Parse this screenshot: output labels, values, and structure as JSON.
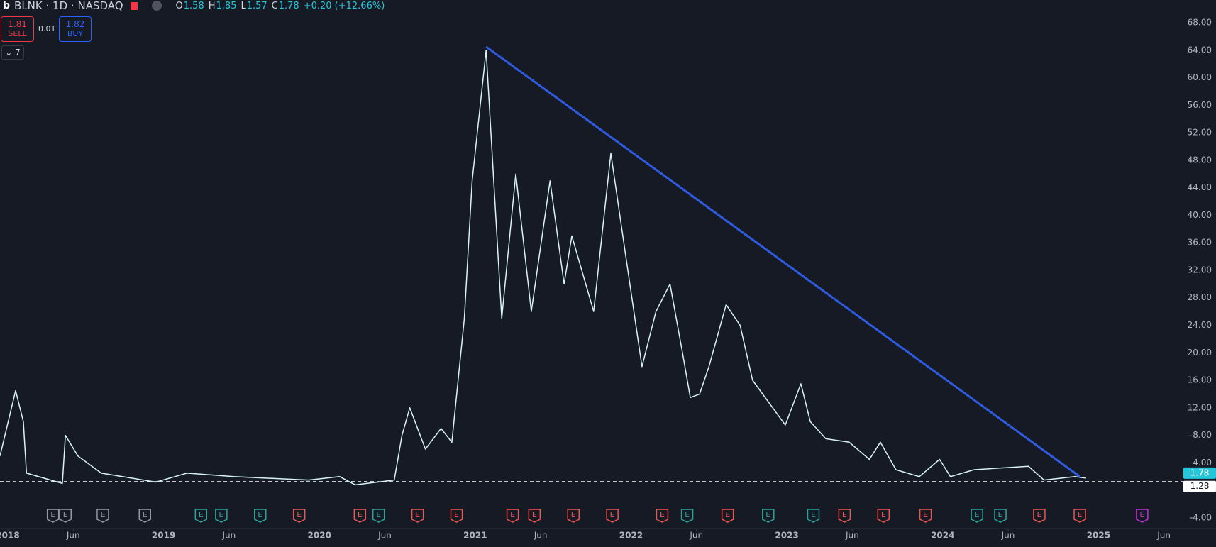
{
  "toolbar": {
    "symbol": "BLNK · 1D · NASDAQ",
    "ohlc": [
      {
        "label": "O",
        "value": "1.58"
      },
      {
        "label": "H",
        "value": "1.85"
      },
      {
        "label": "L",
        "value": "1.57"
      },
      {
        "label": "C",
        "value": "1.78"
      }
    ],
    "change": "+0.20 (+12.66%)",
    "sell": {
      "price": "1.81",
      "label": "SELL"
    },
    "spread": "0.01",
    "buy": {
      "price": "1.82",
      "label": "BUY"
    },
    "indicators": "7"
  },
  "chart_data": {
    "type": "line",
    "series": [
      {
        "name": "BLNK",
        "color": "#d8f3f7",
        "x": [
          2017.95,
          2018.05,
          2018.1,
          2018.12,
          2018.35,
          2018.37,
          2018.45,
          2018.6,
          2018.95,
          2019.15,
          2019.45,
          2019.93,
          2020.13,
          2020.23,
          2020.48,
          2020.53,
          2020.58,
          2020.68,
          2020.78,
          2020.85,
          2020.93,
          2020.98,
          2021.07,
          2021.17,
          2021.26,
          2021.36,
          2021.48,
          2021.57,
          2021.62,
          2021.76,
          2021.87,
          2021.96,
          2022.07,
          2022.16,
          2022.25,
          2022.33,
          2022.38,
          2022.44,
          2022.5,
          2022.61,
          2022.7,
          2022.78,
          2022.99,
          2023.09,
          2023.15,
          2023.25,
          2023.4,
          2023.53,
          2023.6,
          2023.7,
          2023.85,
          2023.98,
          2024.05,
          2024.2,
          2024.55,
          2024.65,
          2024.85,
          2024.92
        ],
        "values": [
          5,
          14.5,
          10,
          2.5,
          1,
          8,
          5,
          2.5,
          1.2,
          2.5,
          2,
          1.5,
          2,
          0.8,
          1.5,
          8,
          12,
          6,
          9,
          7,
          25,
          45,
          64,
          25,
          46,
          26,
          45,
          30,
          37,
          26,
          49,
          35,
          18,
          26,
          30,
          20,
          13.5,
          14,
          18,
          27,
          24,
          16,
          9.5,
          15.5,
          10,
          7.5,
          7,
          4.5,
          7,
          3,
          2,
          4.5,
          2,
          3,
          3.5,
          1.5,
          2,
          1.78
        ]
      }
    ],
    "trendlines": [
      {
        "x": [
          2021.07,
          2024.88
        ],
        "values": [
          64.5,
          2
        ],
        "color": "#2f5be0"
      }
    ],
    "price_lines": [
      {
        "value": 1.78,
        "color": "#26c6da"
      },
      {
        "value": 1.28,
        "color": "#ffffff"
      }
    ],
    "earnings": [
      {
        "color": "#9598a1",
        "label": "E",
        "x": [
          2018.29,
          2018.37,
          2018.61,
          2018.88
        ]
      },
      {
        "color": "#26a69a",
        "label": "E",
        "x": [
          2019.24,
          2019.37,
          2019.62,
          2020.38,
          2022.36,
          2022.88,
          2023.17,
          2024.22,
          2024.37
        ]
      },
      {
        "color": "#ef5350",
        "label": "E",
        "x": [
          2019.87,
          2020.26,
          2020.63,
          2020.88,
          2021.24,
          2021.38,
          2021.63,
          2021.88,
          2022.2,
          2022.62,
          2023.37,
          2023.62,
          2023.89,
          2024.62,
          2024.88
        ]
      },
      {
        "color": "#c42ed8",
        "label": "E",
        "x": [
          2025.28
        ]
      }
    ],
    "xlim": [
      2017.95,
      2025.54
    ],
    "ylim": [
      -5.35,
      71.3
    ],
    "xticks": [
      2018,
      {
        "value": 2018.42,
        "label": "Jun"
      },
      2019,
      {
        "value": 2019.42,
        "label": "Jun"
      },
      2020,
      {
        "value": 2020.42,
        "label": "Jun"
      },
      2021,
      {
        "value": 2021.42,
        "label": "Jun"
      },
      2022,
      {
        "value": 2022.42,
        "label": "Jun"
      },
      2023,
      {
        "value": 2023.42,
        "label": "Jun"
      },
      2024,
      {
        "value": 2024.42,
        "label": "Jun"
      },
      2025,
      {
        "value": 2025.42,
        "label": "Jun"
      }
    ],
    "yticks": [
      {
        "value": -4,
        "label": "-4.00"
      },
      {
        "value": 4,
        "label": "4.00"
      },
      {
        "value": 8,
        "label": "8.00"
      },
      {
        "value": 12,
        "label": "12.00"
      },
      {
        "value": 16,
        "label": "16.00"
      },
      {
        "value": 20,
        "label": "20.00"
      },
      {
        "value": 24,
        "label": "24.00"
      },
      {
        "value": 28,
        "label": "28.00"
      },
      {
        "value": 32,
        "label": "32.00"
      },
      {
        "value": 36,
        "label": "36.00"
      },
      {
        "value": 40,
        "label": "40.00"
      },
      {
        "value": 44,
        "label": "44.00"
      },
      {
        "value": 48,
        "label": "48.00"
      },
      {
        "value": 52,
        "label": "52.00"
      },
      {
        "value": 56,
        "label": "56.00"
      },
      {
        "value": 60,
        "label": "60.00"
      },
      {
        "value": 64,
        "label": "64.00"
      },
      {
        "value": 68,
        "label": "68.00"
      }
    ]
  }
}
